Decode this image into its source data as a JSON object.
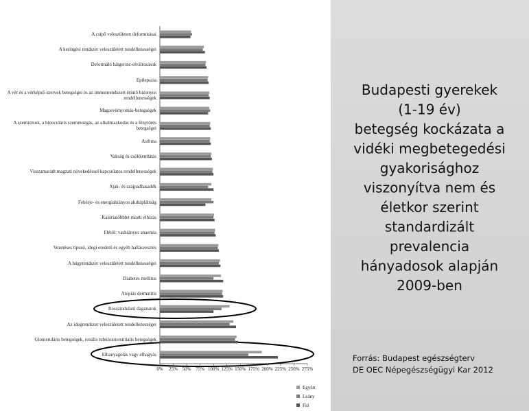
{
  "chart_data": {
    "type": "bar",
    "orientation": "horizontal",
    "categories": [
      "A csípő veleszületett deformitásai",
      "A keringési rendszer veleszületett rendellenességei",
      "Deformáló hátgerinc-elváltozások",
      "Epilepszia",
      "A vér és a vérképző szervek betegségei és az immunrendszert érintő bizonyos rendellenességek",
      "Magasvérnyomás-betegségek",
      "A szemizmok, a binoculáris szemmozgás, az alkalmazkodás és a fénytörés betegségei",
      "Asthma",
      "Vakság és csökkentlátás",
      "Visszamaradt magzati növekedéssel kapcsolatos rendellenességek",
      "Ajak- és szájpadhasadék",
      "Fehérje- és energiahiányos alultápláltság",
      "Kalóriatöbblet miatti elhízás",
      "Ebből: vashiányos anaemia",
      "Vezetéses típusú, idegi eredetű és egyéb hallásvesztés",
      "A húgyrendszer veleszületett rendellenességei",
      "Diabetes mellitus",
      "Atopiás dermatitis",
      "Rosszindulatú daganatok",
      "Az idegrendszer veleszületett rendellenességei",
      "Glomeruláris betegségek, renális tubulointerstitialis betegségek",
      "Elhanyagolás vagy elhagyás"
    ],
    "series": [
      {
        "name": "Együtt",
        "color": "#9a9a9a",
        "values": [
          58,
          82,
          86,
          90,
          92,
          92,
          94,
          94,
          96,
          99,
          96,
          96,
          101,
          103,
          109,
          112,
          114,
          117,
          130,
          137,
          143,
          190
        ]
      },
      {
        "name": "Leány",
        "color": "#7a7a7a",
        "values": [
          60,
          80,
          85,
          89,
          91,
          94,
          93,
          93,
          95,
          98,
          90,
          100,
          100,
          102,
          108,
          110,
          100,
          116,
          115,
          130,
          140,
          165
        ]
      },
      {
        "name": "Fiú",
        "color": "#555555",
        "values": [
          57,
          84,
          87,
          91,
          93,
          90,
          95,
          95,
          97,
          100,
          100,
          85,
          102,
          104,
          110,
          113,
          118,
          118,
          100,
          142,
          146,
          220
        ]
      }
    ],
    "xlim": [
      0,
      275
    ],
    "xticks": [
      {
        "value": 0,
        "label": "0%"
      },
      {
        "value": 25,
        "label": "25%"
      },
      {
        "value": 50,
        "label": "50%"
      },
      {
        "value": 75,
        "label": "75%"
      },
      {
        "value": 100,
        "label": "100%"
      },
      {
        "value": 125,
        "label": "125%"
      },
      {
        "value": 150,
        "label": "150%"
      },
      {
        "value": 175,
        "label": "175%"
      },
      {
        "value": 200,
        "label": "200%"
      },
      {
        "value": 225,
        "label": "225%"
      },
      {
        "value": 250,
        "label": "250%"
      },
      {
        "value": 275,
        "label": "275%"
      }
    ],
    "grid": false,
    "legend": "bottom-right"
  },
  "panel": {
    "title_lines": [
      "Budapesti gyerekek",
      "(1-19 év)",
      "betegség kockázata a",
      "vidéki megbetegedési",
      "gyakorisághoz",
      "viszonyítva nem és",
      "életkor szerint",
      "standardizált",
      "prevalencia",
      "hányadosok alapján",
      "2009-ben"
    ],
    "source_lines": [
      "Forrás: Budapest egészségterv",
      "DE OEC Népegészségügyi Kar 2012"
    ]
  }
}
